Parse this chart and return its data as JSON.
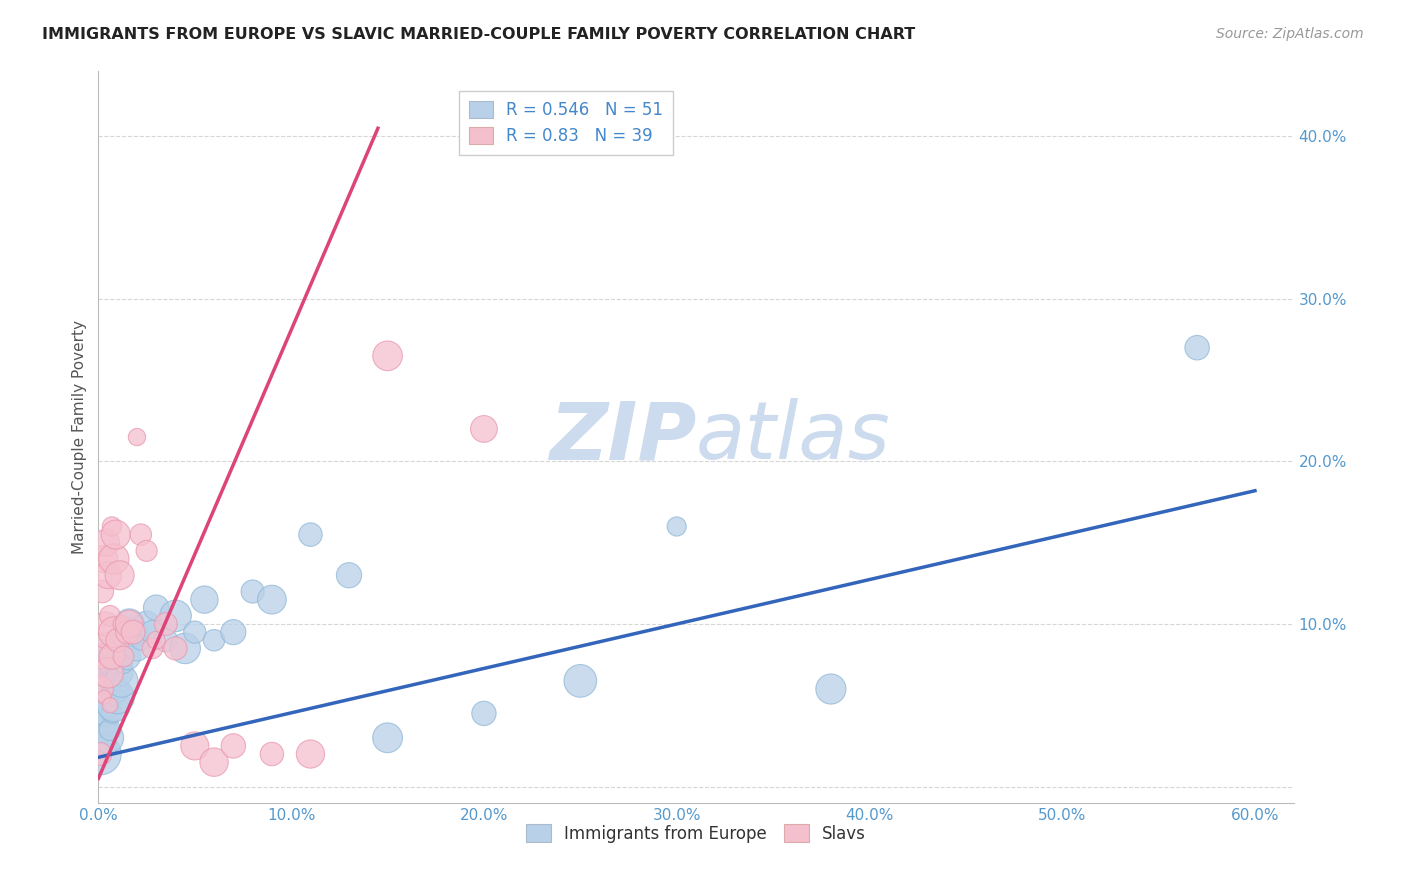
{
  "title": "IMMIGRANTS FROM EUROPE VS SLAVIC MARRIED-COUPLE FAMILY POVERTY CORRELATION CHART",
  "source": "Source: ZipAtlas.com",
  "ylabel": "Married-Couple Family Poverty",
  "xlim": [
    0.0,
    0.62
  ],
  "ylim": [
    -0.01,
    0.44
  ],
  "xticks": [
    0.0,
    0.1,
    0.2,
    0.3,
    0.4,
    0.5,
    0.6
  ],
  "xticklabels": [
    "0.0%",
    "10.0%",
    "20.0%",
    "30.0%",
    "40.0%",
    "50.0%",
    "60.0%"
  ],
  "yticks": [
    0.0,
    0.1,
    0.2,
    0.3,
    0.4
  ],
  "yticklabels": [
    "",
    "10.0%",
    "20.0%",
    "30.0%",
    "40.0%"
  ],
  "blue_color": "#b8d0e8",
  "blue_edge": "#90b8d8",
  "pink_color": "#f5c0ce",
  "pink_edge": "#e898b0",
  "blue_line_color": "#3366bb",
  "pink_line_color": "#dd4477",
  "watermark_color": "#ccdcee",
  "grid_color": "#cccccc",
  "R_blue": 0.546,
  "N_blue": 51,
  "R_pink": 0.83,
  "N_pink": 39,
  "blue_line_x0": 0.0,
  "blue_line_y0": 0.018,
  "blue_line_x1": 0.6,
  "blue_line_y1": 0.182,
  "pink_line_x0": 0.0,
  "pink_line_y0": 0.005,
  "pink_line_x1": 0.145,
  "pink_line_y1": 0.405,
  "blue_scatter_x": [
    0.001,
    0.001,
    0.002,
    0.002,
    0.002,
    0.003,
    0.003,
    0.003,
    0.004,
    0.004,
    0.004,
    0.005,
    0.005,
    0.005,
    0.006,
    0.006,
    0.007,
    0.007,
    0.008,
    0.008,
    0.009,
    0.01,
    0.01,
    0.011,
    0.012,
    0.013,
    0.015,
    0.016,
    0.018,
    0.02,
    0.022,
    0.025,
    0.028,
    0.03,
    0.035,
    0.04,
    0.045,
    0.05,
    0.055,
    0.06,
    0.07,
    0.08,
    0.09,
    0.11,
    0.13,
    0.15,
    0.2,
    0.25,
    0.3,
    0.38,
    0.57
  ],
  "blue_scatter_y": [
    0.02,
    0.05,
    0.035,
    0.06,
    0.08,
    0.04,
    0.055,
    0.07,
    0.025,
    0.045,
    0.065,
    0.03,
    0.05,
    0.07,
    0.035,
    0.06,
    0.045,
    0.075,
    0.05,
    0.08,
    0.06,
    0.055,
    0.09,
    0.07,
    0.065,
    0.075,
    0.08,
    0.1,
    0.095,
    0.085,
    0.09,
    0.1,
    0.095,
    0.11,
    0.09,
    0.105,
    0.085,
    0.095,
    0.115,
    0.09,
    0.095,
    0.12,
    0.115,
    0.155,
    0.13,
    0.03,
    0.045,
    0.065,
    0.16,
    0.06,
    0.27
  ],
  "pink_scatter_x": [
    0.001,
    0.001,
    0.002,
    0.002,
    0.003,
    0.003,
    0.003,
    0.004,
    0.004,
    0.005,
    0.005,
    0.006,
    0.006,
    0.007,
    0.007,
    0.008,
    0.008,
    0.009,
    0.01,
    0.011,
    0.012,
    0.013,
    0.015,
    0.016,
    0.018,
    0.02,
    0.022,
    0.025,
    0.028,
    0.03,
    0.035,
    0.04,
    0.05,
    0.06,
    0.07,
    0.09,
    0.11,
    0.15,
    0.2
  ],
  "pink_scatter_y": [
    0.02,
    0.06,
    0.08,
    0.12,
    0.055,
    0.09,
    0.14,
    0.1,
    0.15,
    0.07,
    0.13,
    0.05,
    0.105,
    0.08,
    0.16,
    0.095,
    0.14,
    0.155,
    0.09,
    0.13,
    0.1,
    0.08,
    0.095,
    0.1,
    0.095,
    0.215,
    0.155,
    0.145,
    0.085,
    0.09,
    0.1,
    0.085,
    0.025,
    0.015,
    0.025,
    0.02,
    0.02,
    0.265,
    0.22
  ]
}
